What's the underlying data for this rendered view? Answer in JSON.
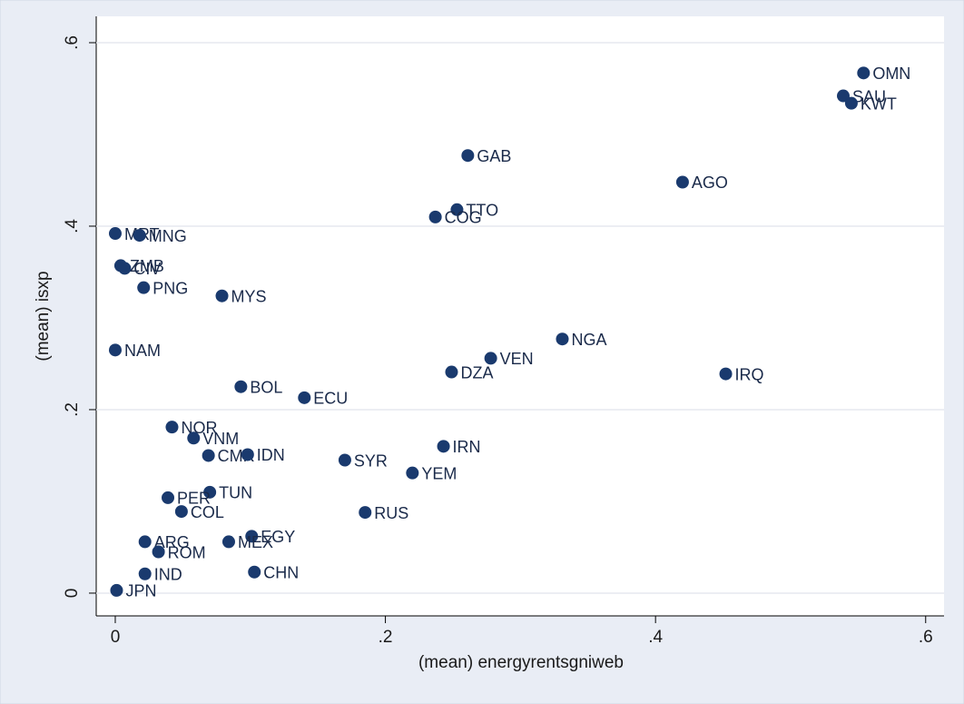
{
  "chart_data": {
    "type": "scatter",
    "xlabel": "(mean) energyrentsgniweb",
    "ylabel": "(mean) isxp",
    "labels": [
      "OMN",
      "SAU",
      "KWT",
      "GAB",
      "AGO",
      "TTO",
      "COG",
      "MRT",
      "MNG",
      "ZMB",
      "CIV",
      "PNG",
      "MYS",
      "NAM",
      "NGA",
      "VEN",
      "DZA",
      "IRQ",
      "BOL",
      "ECU",
      "NOR",
      "VNM",
      "CMR",
      "IDN",
      "SYR",
      "IRN",
      "YEM",
      "TUN",
      "PER",
      "COL",
      "RUS",
      "EGY",
      "MEX",
      "ARG",
      "ROM",
      "CHN",
      "IND",
      "JPN"
    ],
    "x": [
      0.554,
      0.539,
      0.545,
      0.261,
      0.42,
      0.253,
      0.237,
      0.0,
      0.018,
      0.004,
      0.007,
      0.021,
      0.079,
      0.0,
      0.331,
      0.278,
      0.249,
      0.452,
      0.093,
      0.14,
      0.042,
      0.058,
      0.069,
      0.098,
      0.17,
      0.243,
      0.22,
      0.07,
      0.039,
      0.049,
      0.185,
      0.101,
      0.084,
      0.022,
      0.032,
      0.103,
      0.022,
      0.001
    ],
    "values": [
      0.567,
      0.542,
      0.534,
      0.477,
      0.448,
      0.418,
      0.41,
      0.392,
      0.39,
      0.357,
      0.354,
      0.333,
      0.324,
      0.265,
      0.277,
      0.256,
      0.241,
      0.239,
      0.225,
      0.213,
      0.181,
      0.169,
      0.15,
      0.151,
      0.145,
      0.16,
      0.131,
      0.11,
      0.104,
      0.089,
      0.088,
      0.062,
      0.056,
      0.056,
      0.045,
      0.023,
      0.021,
      0.003
    ],
    "color": "#1a3a6e",
    "xlim": [
      -0.0141,
      0.6136
    ],
    "ylim": [
      -0.0248,
      0.6287
    ],
    "xticks": [
      0,
      {
        "value": 0.2,
        "label": ".2"
      },
      {
        "value": 0.4,
        "label": ".4"
      },
      {
        "value": 0.6,
        "label": ".6"
      }
    ],
    "yticks": [
      0,
      {
        "value": 0.2,
        "label": ".2"
      },
      {
        "value": 0.4,
        "label": ".4"
      },
      {
        "value": 0.6,
        "label": ".6"
      }
    ],
    "grid": true
  }
}
